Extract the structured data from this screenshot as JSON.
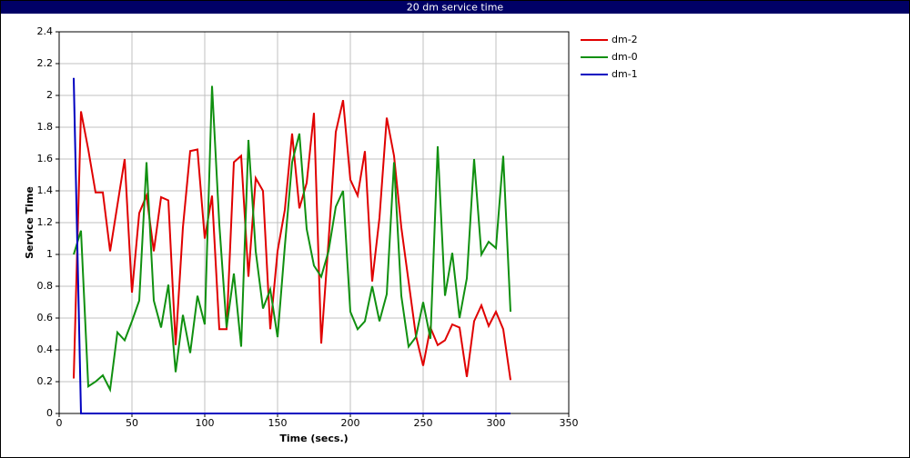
{
  "chart_data": {
    "type": "line",
    "title": "20 dm service time",
    "x_label": "Time (secs.)",
    "y_label": "Service Time",
    "x": [
      10,
      15,
      20,
      25,
      30,
      35,
      40,
      45,
      50,
      55,
      60,
      65,
      70,
      75,
      80,
      85,
      90,
      95,
      100,
      105,
      110,
      115,
      120,
      125,
      130,
      135,
      140,
      145,
      150,
      155,
      160,
      165,
      170,
      175,
      180,
      185,
      190,
      195,
      200,
      205,
      210,
      215,
      220,
      225,
      230,
      235,
      240,
      245,
      250,
      255,
      260,
      265,
      270,
      275,
      280,
      285,
      290,
      295,
      300,
      305,
      310
    ],
    "series": [
      {
        "name": "dm-2",
        "color": "#e00000",
        "values": [
          0.22,
          1.9,
          1.66,
          1.39,
          1.39,
          1.02,
          1.31,
          1.6,
          0.76,
          1.26,
          1.37,
          1.02,
          1.36,
          1.34,
          0.43,
          1.17,
          1.65,
          1.66,
          1.1,
          1.37,
          0.53,
          0.53,
          1.58,
          1.62,
          0.86,
          1.48,
          1.4,
          0.53,
          1.02,
          1.28,
          1.76,
          1.29,
          1.45,
          1.89,
          0.44,
          1.08,
          1.77,
          1.97,
          1.47,
          1.37,
          1.65,
          0.83,
          1.23,
          1.86,
          1.62,
          1.17,
          0.83,
          0.49,
          0.3,
          0.54,
          0.43,
          0.46,
          0.56,
          0.54,
          0.23,
          0.58,
          0.68,
          0.55,
          0.64,
          0.53,
          0.21
        ]
      },
      {
        "name": "dm-0",
        "color": "#109010",
        "values": [
          1.0,
          1.15,
          0.17,
          0.2,
          0.24,
          0.15,
          0.51,
          0.46,
          0.58,
          0.71,
          1.58,
          0.71,
          0.54,
          0.81,
          0.26,
          0.62,
          0.38,
          0.74,
          0.56,
          2.06,
          1.19,
          0.54,
          0.88,
          0.42,
          1.72,
          1.02,
          0.66,
          0.78,
          0.48,
          1.05,
          1.58,
          1.76,
          1.16,
          0.93,
          0.86,
          1.02,
          1.3,
          1.4,
          0.64,
          0.53,
          0.58,
          0.8,
          0.58,
          0.75,
          1.58,
          0.74,
          0.42,
          0.48,
          0.7,
          0.47,
          1.68,
          0.74,
          1.01,
          0.6,
          0.85,
          1.6,
          1.0,
          1.08,
          1.04,
          1.62,
          0.64
        ]
      },
      {
        "name": "dm-1",
        "color": "#0000c0",
        "values": [
          2.11,
          0,
          0,
          0,
          0,
          0,
          0,
          0,
          0,
          0,
          0,
          0,
          0,
          0,
          0,
          0,
          0,
          0,
          0,
          0,
          0,
          0,
          0,
          0,
          0,
          0,
          0,
          0,
          0,
          0,
          0,
          0,
          0,
          0,
          0,
          0,
          0,
          0,
          0,
          0,
          0,
          0,
          0,
          0,
          0,
          0,
          0,
          0,
          0,
          0,
          0,
          0,
          0,
          0,
          0,
          0,
          0,
          0,
          0,
          0,
          0
        ]
      }
    ],
    "xlim": [
      0,
      350
    ],
    "xticks": [
      0,
      50,
      100,
      150,
      200,
      250,
      300,
      350
    ],
    "ylim": [
      0,
      2.4
    ],
    "yticks": [
      0,
      0.2,
      0.4,
      0.6,
      0.8,
      1,
      1.2,
      1.4,
      1.6,
      1.8,
      2,
      2.2,
      2.4
    ],
    "grid": true,
    "legend": "right"
  }
}
